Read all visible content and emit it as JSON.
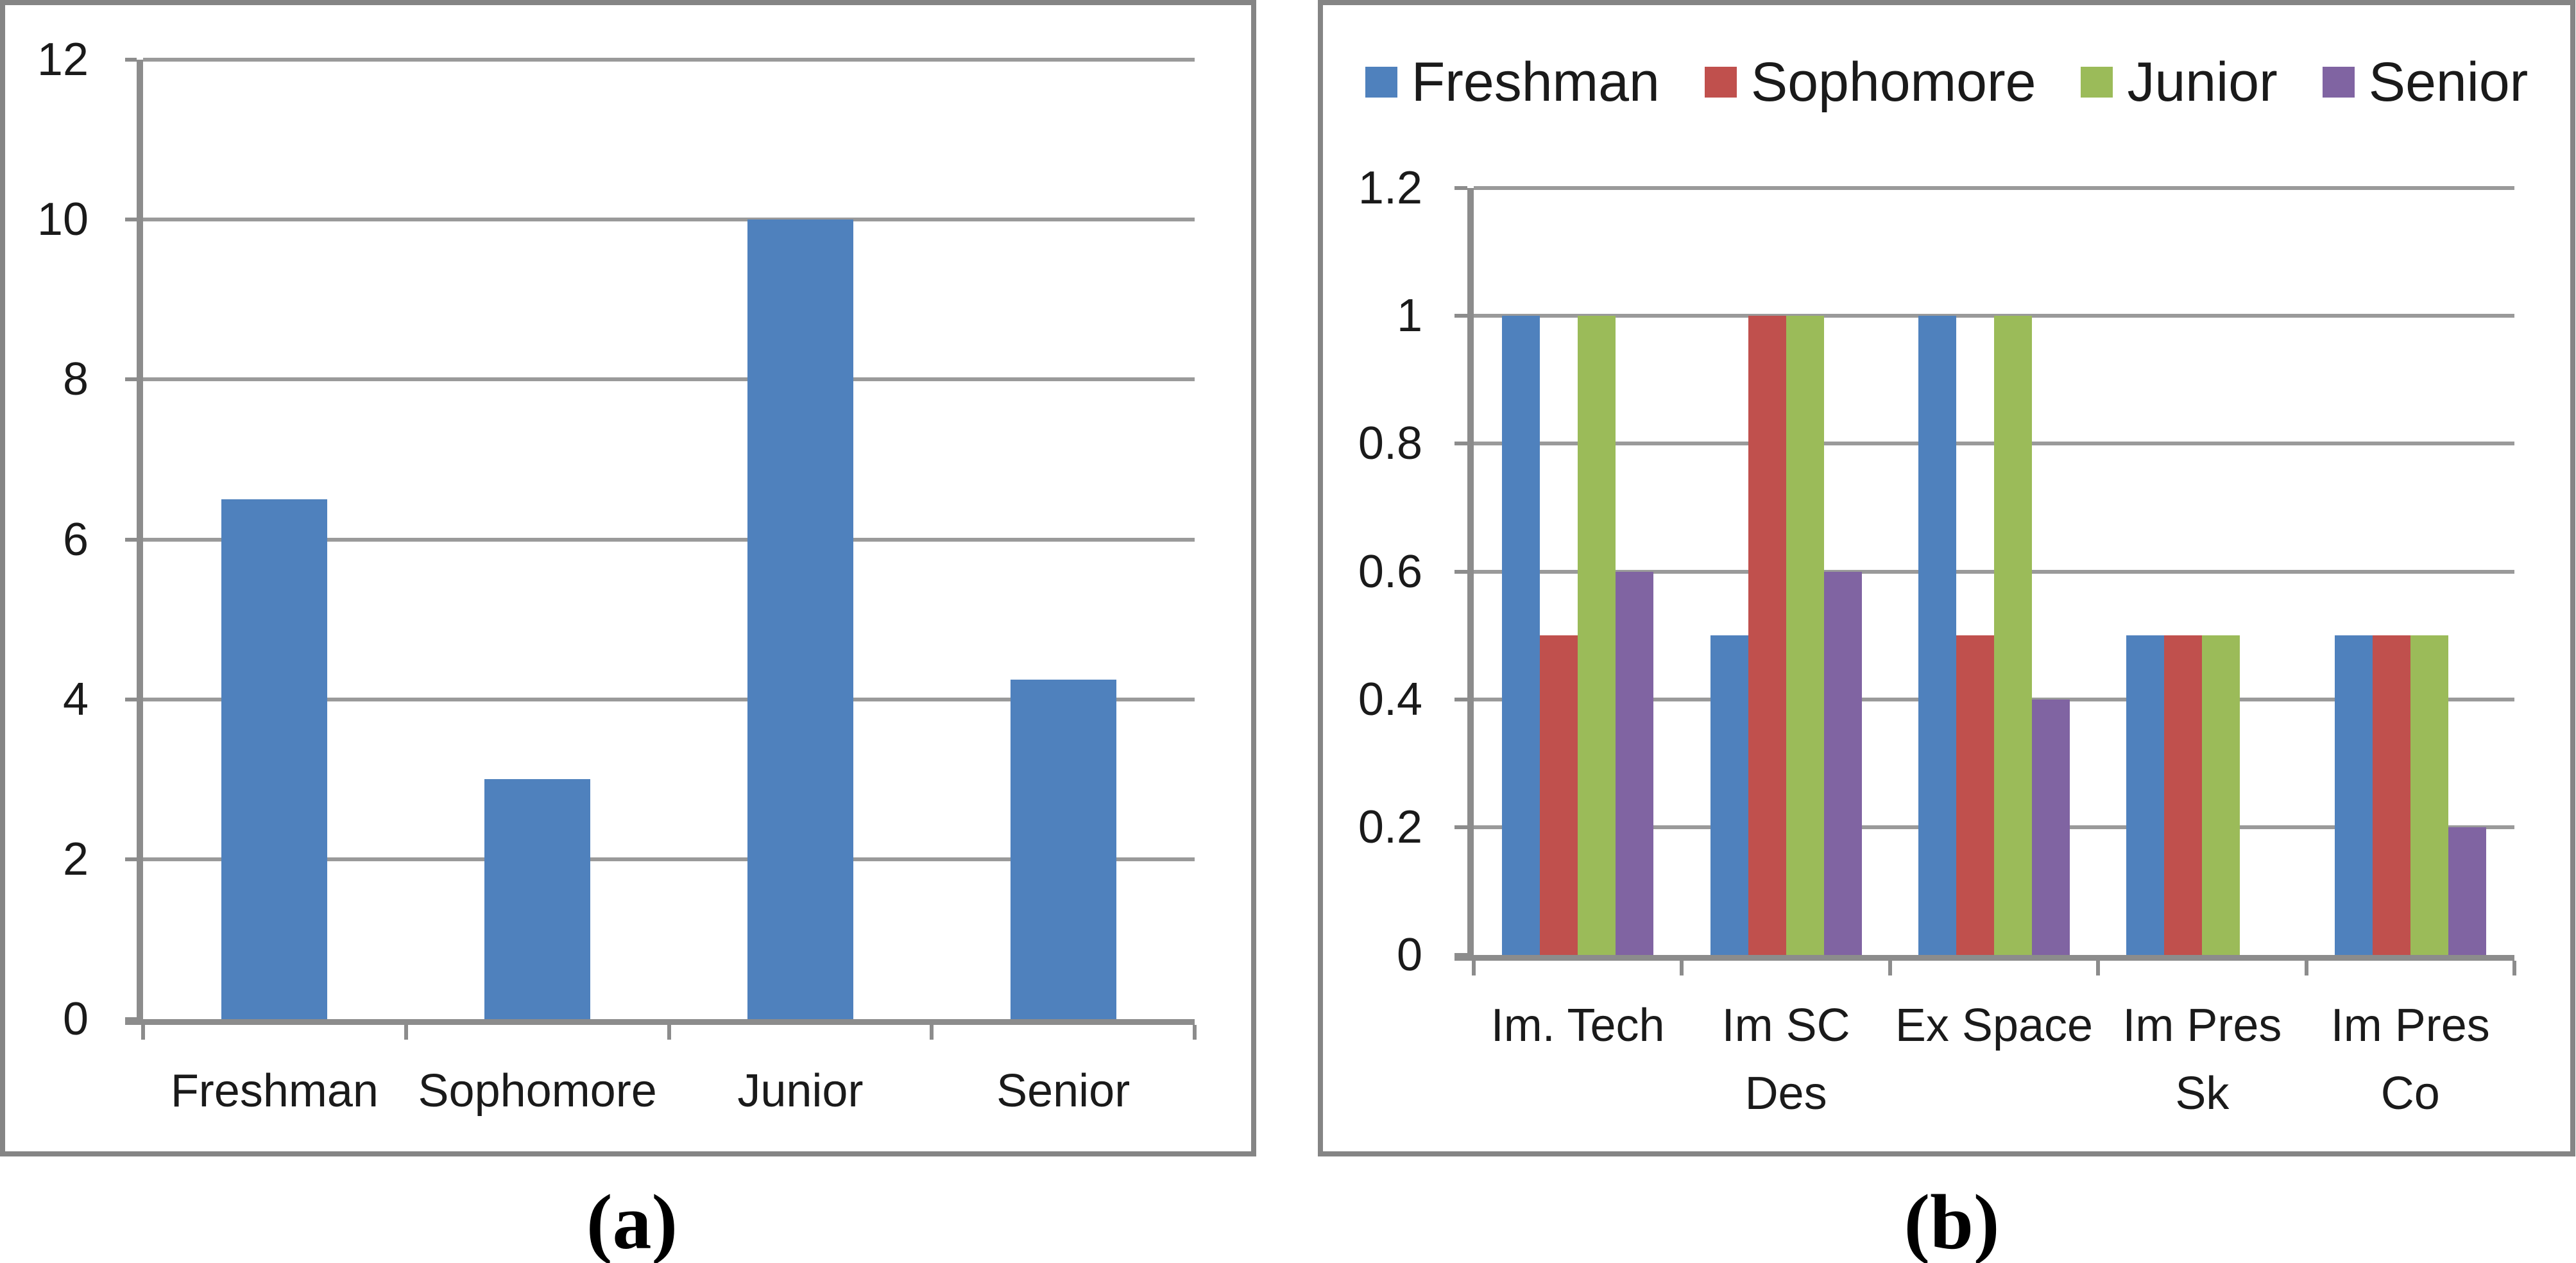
{
  "figure": {
    "captions": {
      "a": "(a)",
      "b": "(b)"
    }
  },
  "colors": {
    "freshman_blue": "#4F81BD",
    "sophomore_red": "#C0504D",
    "junior_green": "#9BBB59",
    "senior_purple": "#8064A2",
    "gridline_gray": "#9A9A9A",
    "axis_gray": "#8C8C8C",
    "panel_border_gray": "#858585",
    "text_black": "#1A1A1A"
  },
  "chart_data": [
    {
      "id": "a",
      "type": "bar",
      "title": "",
      "categories": [
        "Freshman",
        "Sophomore",
        "Junior",
        "Senior"
      ],
      "values": [
        6.5,
        3,
        10,
        4.25
      ],
      "bar_color": "#4F81BD",
      "xlabel": "",
      "ylabel": "",
      "ylim": [
        0,
        12
      ],
      "yticks": [
        0,
        2,
        4,
        6,
        8,
        10,
        12
      ],
      "ytick_labels": [
        "0",
        "2",
        "4",
        "6",
        "8",
        "10",
        "12"
      ],
      "grid": true,
      "legend_position": "none"
    },
    {
      "id": "b",
      "type": "bar",
      "title": "",
      "categories": [
        "Im. Tech",
        "Im SC Des",
        "Ex Space",
        "Im Pres Sk",
        "Im Pres Co"
      ],
      "category_lines": [
        [
          "Im. Tech"
        ],
        [
          "Im SC",
          "Des"
        ],
        [
          "Ex Space"
        ],
        [
          "Im Pres",
          "Sk"
        ],
        [
          "Im Pres",
          "Co"
        ]
      ],
      "series": [
        {
          "name": "Freshman",
          "color": "#4F81BD",
          "values": [
            1,
            0.5,
            1,
            0.5,
            0.5
          ]
        },
        {
          "name": "Sophomore",
          "color": "#C0504D",
          "values": [
            0.5,
            1,
            0.5,
            0.5,
            0.5
          ]
        },
        {
          "name": "Junior",
          "color": "#9BBB59",
          "values": [
            1,
            1,
            1,
            0.5,
            0.5
          ]
        },
        {
          "name": "Senior",
          "color": "#8064A2",
          "values": [
            0.6,
            0.6,
            0.4,
            0,
            0.2
          ]
        }
      ],
      "xlabel": "",
      "ylabel": "",
      "ylim": [
        0,
        1.2
      ],
      "yticks": [
        0,
        0.2,
        0.4,
        0.6,
        0.8,
        1,
        1.2
      ],
      "ytick_labels": [
        "0",
        "0.2",
        "0.4",
        "0.6",
        "0.8",
        "1",
        "1.2"
      ],
      "grid": true,
      "legend_position": "top"
    }
  ]
}
